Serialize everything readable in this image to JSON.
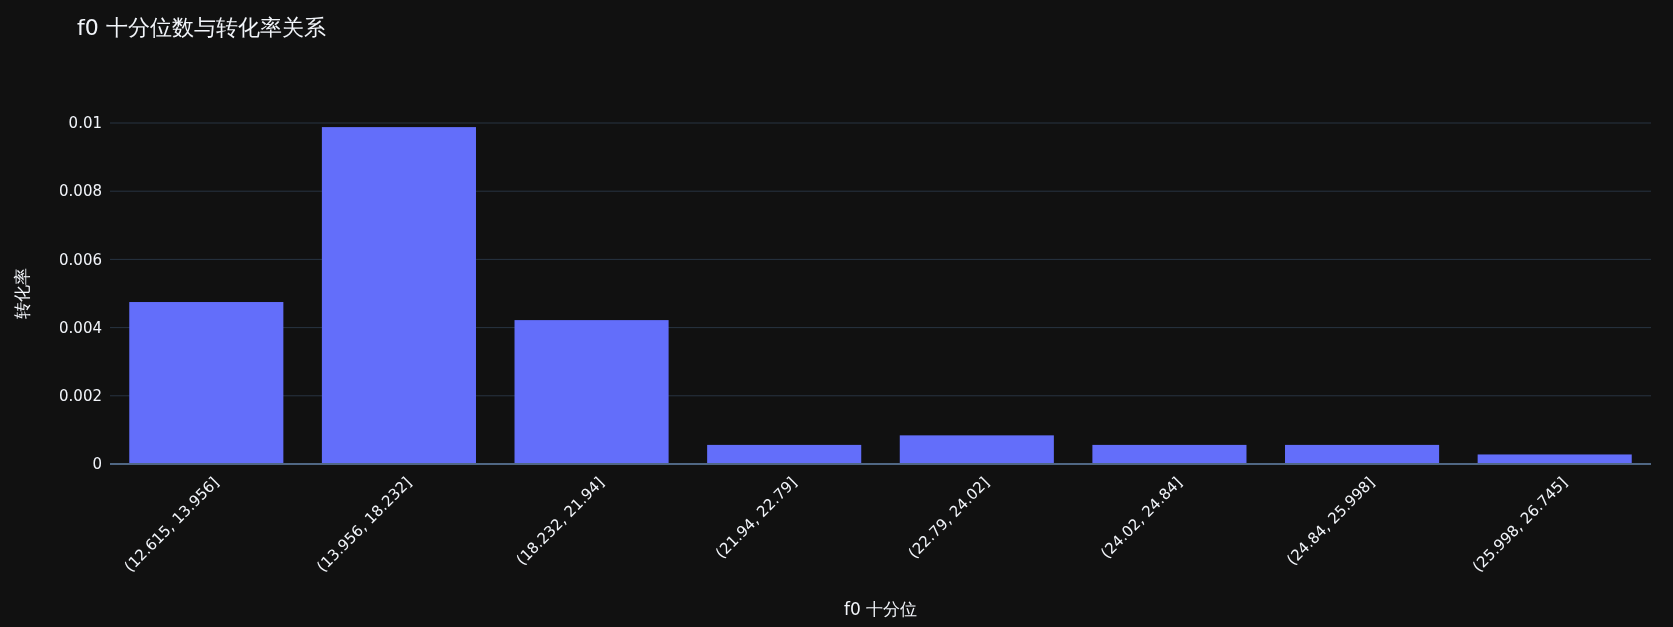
{
  "chart_data": {
    "type": "bar",
    "title": "f0 十分位数与转化率关系",
    "xlabel": "f0 十分位",
    "ylabel": "转化率",
    "categories": [
      "(12.615, 13.956]",
      "(13.956, 18.232]",
      "(18.232, 21.94]",
      "(21.94, 22.79]",
      "(22.79, 24.02]",
      "(24.02, 24.84]",
      "(24.84, 25.998]",
      "(25.998, 26.745]"
    ],
    "values": [
      0.00475,
      0.00988,
      0.00422,
      0.00056,
      0.00084,
      0.00056,
      0.00056,
      0.00028
    ],
    "color": "#636efa",
    "ylim": [
      0,
      0.01
    ],
    "yticks": [
      0,
      0.002,
      0.004,
      0.006,
      0.008,
      0.01
    ],
    "grid": "y"
  }
}
